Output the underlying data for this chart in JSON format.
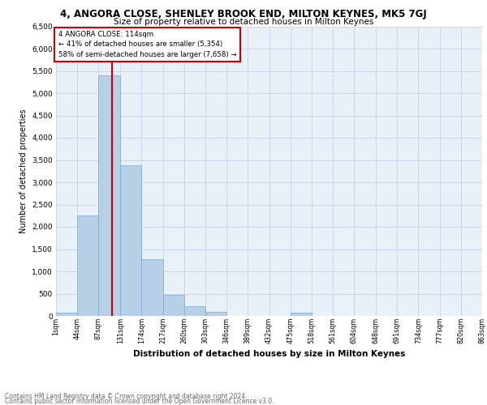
{
  "title": "4, ANGORA CLOSE, SHENLEY BROOK END, MILTON KEYNES, MK5 7GJ",
  "subtitle": "Size of property relative to detached houses in Milton Keynes",
  "xlabel": "Distribution of detached houses by size in Milton Keynes",
  "ylabel": "Number of detached properties",
  "footnote1": "Contains HM Land Registry data © Crown copyright and database right 2024.",
  "footnote2": "Contains public sector information licensed under the Open Government Licence v3.0.",
  "annotation_title": "4 ANGORA CLOSE: 114sqm",
  "annotation_line1": "← 41% of detached houses are smaller (5,354)",
  "annotation_line2": "58% of semi-detached houses are larger (7,658) →",
  "property_line_x": 114,
  "bar_color": "#b8cfe8",
  "bar_edge_color": "#7aaad0",
  "grid_color": "#c8d8ea",
  "background_color": "#e8f0f8",
  "annotation_box_color": "#ffffff",
  "annotation_box_edge": "#cc0000",
  "property_line_color": "#cc0000",
  "ylim": [
    0,
    6500
  ],
  "yticks": [
    0,
    500,
    1000,
    1500,
    2000,
    2500,
    3000,
    3500,
    4000,
    4500,
    5000,
    5500,
    6000,
    6500
  ],
  "bin_edges": [
    1,
    44,
    87,
    131,
    174,
    217,
    260,
    303,
    346,
    389,
    432,
    475,
    518,
    561,
    604,
    648,
    691,
    734,
    777,
    820,
    863
  ],
  "bin_labels": [
    "1sqm",
    "44sqm",
    "87sqm",
    "131sqm",
    "174sqm",
    "217sqm",
    "260sqm",
    "303sqm",
    "346sqm",
    "389sqm",
    "432sqm",
    "475sqm",
    "518sqm",
    "561sqm",
    "604sqm",
    "648sqm",
    "691sqm",
    "734sqm",
    "777sqm",
    "820sqm",
    "863sqm"
  ],
  "bar_heights": [
    75,
    2250,
    5400,
    3380,
    1280,
    480,
    215,
    95,
    0,
    0,
    0,
    65,
    0,
    0,
    0,
    0,
    0,
    0,
    0,
    0
  ],
  "title_fontsize": 8.5,
  "subtitle_fontsize": 7.5,
  "xlabel_fontsize": 7.5,
  "ylabel_fontsize": 7.0,
  "tick_fontsize": 6.5,
  "xtick_fontsize": 5.8,
  "footnote_fontsize": 5.5
}
